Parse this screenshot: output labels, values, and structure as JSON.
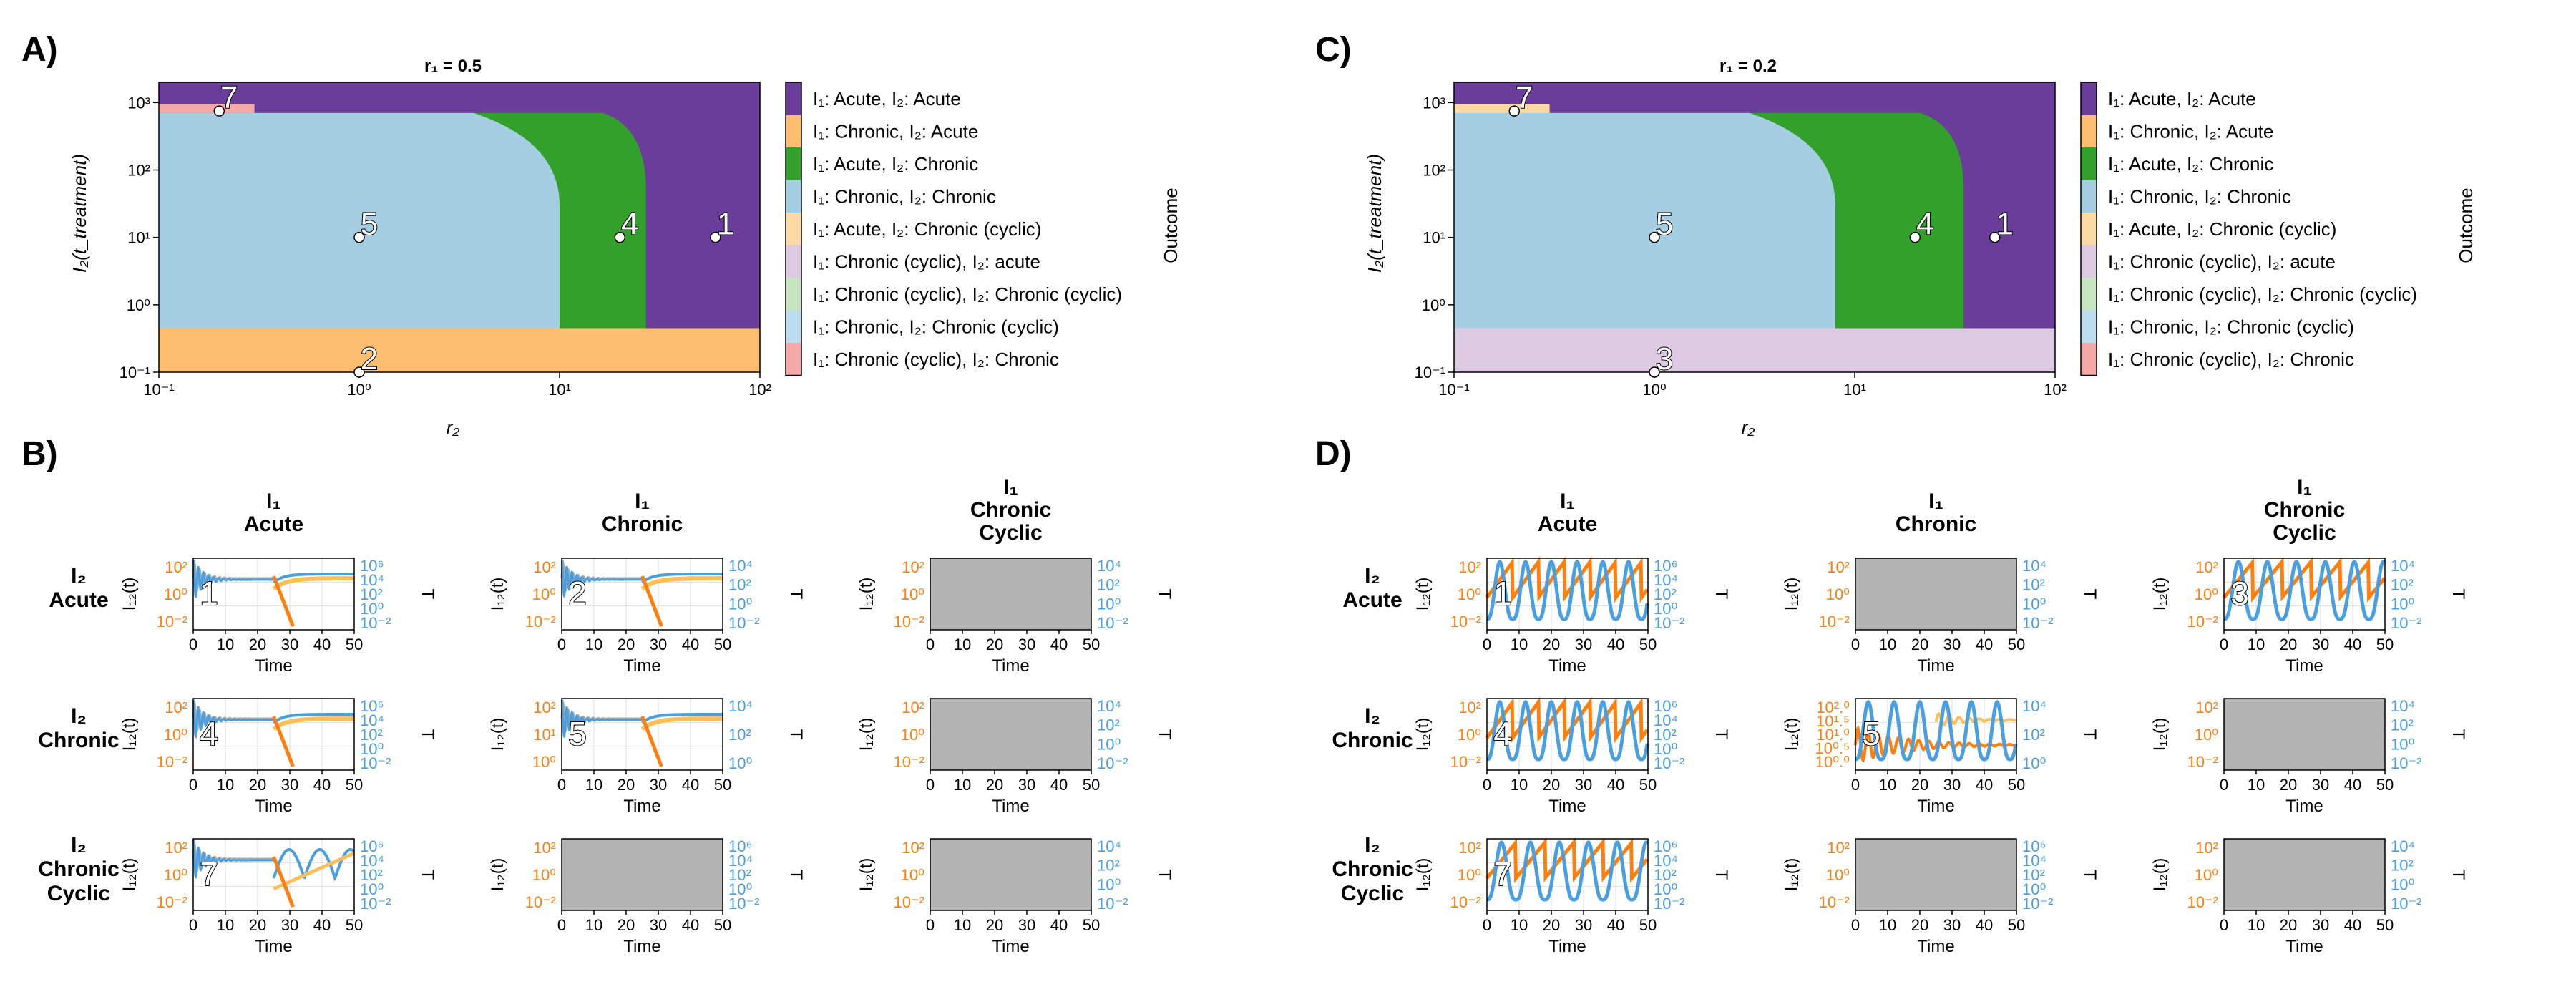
{
  "panel_letters": {
    "A": "A)",
    "B": "B)",
    "C": "C)",
    "D": "D)"
  },
  "row_headers": [
    [
      "I₂",
      "Acute"
    ],
    [
      "I₂",
      "Chronic"
    ],
    [
      "I₂",
      "Chronic",
      "Cyclic"
    ]
  ],
  "col_headers": [
    [
      "I₁",
      "Acute"
    ],
    [
      "I₁",
      "Chronic"
    ],
    [
      "I₁",
      "Chronic",
      "Cyclic"
    ]
  ],
  "legend_title": "Outcome",
  "legend": [
    {
      "label": "I₁: Acute, I₂: Acute",
      "color": "#6a3d9a"
    },
    {
      "label": "I₁: Chronic, I₂: Acute",
      "color": "#fdbf6f"
    },
    {
      "label": "I₁: Acute, I₂: Chronic",
      "color": "#33a02c"
    },
    {
      "label": "I₁: Chronic, I₂: Chronic",
      "color": "#a6cee3"
    },
    {
      "label": "I₁: Acute, I₂: Chronic (cyclic)",
      "color": "#fdd9a3"
    },
    {
      "label": "I₁: Chronic (cyclic), I₂: acute",
      "color": "#dcc9e2"
    },
    {
      "label": "I₁: Chronic (cyclic), I₂: Chronic (cyclic)",
      "color": "#c7e5c0"
    },
    {
      "label": "I₁: Chronic, I₂: Chronic (cyclic)",
      "color": "#bcdcef"
    },
    {
      "label": "I₁: Chronic (cyclic), I₂: Chronic",
      "color": "#f4a9a8"
    }
  ],
  "mini_axes": {
    "ylabel": "I₁₂(t)",
    "y2label": "T",
    "xlabel": "Time",
    "xticks": [
      "0",
      "10",
      "20",
      "30",
      "40",
      "50"
    ],
    "colors": {
      "orange": "#ff7f0e",
      "light_orange": "#fdbf5a",
      "blue": "#4a9fe0",
      "gray": "#a9a9a9"
    }
  },
  "chart_data": [
    {
      "type": "heatmap",
      "title": "r₁ = 0.5",
      "xlabel": "r₂",
      "ylabel": "I₂(t_treatment)",
      "xscale": "log",
      "yscale": "log",
      "xlim": [
        0.1,
        100
      ],
      "ylim": [
        0.1,
        2000
      ],
      "xticks": [
        "10⁻¹",
        "10⁰",
        "10¹",
        "10²"
      ],
      "yticks": [
        "10⁻¹",
        "10⁰",
        "10¹",
        "10²",
        "10³"
      ],
      "regions": [
        {
          "outcome": "I₁: Acute, I₂: Acute",
          "description": "top band and right side"
        },
        {
          "outcome": "I₁: Chronic, I₂: Acute",
          "y_range": [
            0.1,
            0.45
          ]
        },
        {
          "outcome": "I₁: Chronic, I₂: Chronic",
          "x_range": [
            0.1,
            10
          ],
          "y_range": [
            0.45,
            700
          ]
        },
        {
          "outcome": "I₁: Acute, I₂: Chronic",
          "x_range": [
            10,
            27
          ],
          "y_range": [
            0.45,
            700
          ]
        }
      ],
      "points": [
        {
          "label": "7",
          "x": 0.2,
          "y": 750
        },
        {
          "label": "5",
          "x": 1,
          "y": 10
        },
        {
          "label": "4",
          "x": 20,
          "y": 10
        },
        {
          "label": "1",
          "x": 60,
          "y": 10
        },
        {
          "label": "2",
          "x": 1,
          "y": 0.1
        }
      ]
    },
    {
      "type": "heatmap",
      "title": "r₁ = 0.2",
      "xlabel": "r₂",
      "ylabel": "I₂(t_treatment)",
      "xscale": "log",
      "yscale": "log",
      "xlim": [
        0.1,
        100
      ],
      "ylim": [
        0.1,
        2000
      ],
      "xticks": [
        "10⁻¹",
        "10⁰",
        "10¹",
        "10²"
      ],
      "yticks": [
        "10⁻¹",
        "10⁰",
        "10¹",
        "10²",
        "10³"
      ],
      "regions": [
        {
          "outcome": "I₁: Acute, I₂: Acute",
          "description": "top band and right side"
        },
        {
          "outcome": "I₁: Chronic (cyclic), I₂: acute",
          "y_range": [
            0.1,
            0.45
          ]
        },
        {
          "outcome": "I₁: Chronic, I₂: Chronic",
          "x_range": [
            0.1,
            8
          ],
          "y_range": [
            0.45,
            700
          ]
        },
        {
          "outcome": "I₁: Acute, I₂: Chronic",
          "x_range": [
            8,
            35
          ],
          "y_range": [
            0.3,
            700
          ]
        }
      ],
      "points": [
        {
          "label": "7",
          "x": 0.2,
          "y": 750
        },
        {
          "label": "5",
          "x": 1,
          "y": 10
        },
        {
          "label": "4",
          "x": 20,
          "y": 10
        },
        {
          "label": "1",
          "x": 50,
          "y": 10
        },
        {
          "label": "3",
          "x": 1,
          "y": 0.1
        }
      ]
    },
    {
      "type": "line",
      "panel": "B",
      "description": "time courses I₁₂(t) (left axis) and T (right axis) for each outcome",
      "xlim": [
        0,
        50
      ],
      "cells": [
        {
          "row": 0,
          "col": 0,
          "label": "1",
          "empty": false,
          "style": "damped",
          "ylim": [
            0.01,
            1000
          ],
          "yticks": [
            "10⁻²",
            "10⁰",
            "10²"
          ],
          "y2ticks": [
            "10⁻²",
            "10⁰",
            "10²",
            "10⁴",
            "10⁶"
          ]
        },
        {
          "row": 0,
          "col": 1,
          "label": "2",
          "empty": false,
          "style": "damped",
          "ylim": [
            0.01,
            1000
          ],
          "yticks": [
            "10⁻²",
            "10⁰",
            "10²"
          ],
          "y2ticks": [
            "10⁻²",
            "10⁰",
            "10²",
            "10⁴"
          ]
        },
        {
          "row": 0,
          "col": 2,
          "label": "",
          "empty": true,
          "yticks": [
            "10⁻²",
            "10⁰",
            "10²"
          ],
          "y2ticks": [
            "10⁻²",
            "10⁰",
            "10²",
            "10⁴"
          ]
        },
        {
          "row": 1,
          "col": 0,
          "label": "4",
          "empty": false,
          "style": "damped",
          "ylim": [
            0.01,
            1000
          ],
          "yticks": [
            "10⁻²",
            "10⁰",
            "10²"
          ],
          "y2ticks": [
            "10⁻²",
            "10⁰",
            "10²",
            "10⁴",
            "10⁶"
          ]
        },
        {
          "row": 1,
          "col": 1,
          "label": "5",
          "empty": false,
          "style": "damped",
          "ylim": [
            1,
            1000
          ],
          "yticks": [
            "10⁰",
            "10¹",
            "10²"
          ],
          "y2ticks": [
            "10⁰",
            "10²",
            "10⁴"
          ]
        },
        {
          "row": 1,
          "col": 2,
          "label": "",
          "empty": true,
          "yticks": [
            "10⁻²",
            "10⁰",
            "10²"
          ],
          "y2ticks": [
            "10⁻²",
            "10⁰",
            "10²",
            "10⁴"
          ]
        },
        {
          "row": 2,
          "col": 0,
          "label": "7",
          "empty": false,
          "style": "mixed",
          "ylim": [
            0.01,
            1000
          ],
          "yticks": [
            "10⁻²",
            "10⁰",
            "10²"
          ],
          "y2ticks": [
            "10⁻²",
            "10⁰",
            "10²",
            "10⁴",
            "10⁶"
          ]
        },
        {
          "row": 2,
          "col": 1,
          "label": "",
          "empty": true,
          "yticks": [
            "10⁻²",
            "10⁰",
            "10²"
          ],
          "y2ticks": [
            "10⁻²",
            "10⁰",
            "10²",
            "10⁴",
            "10⁶"
          ]
        },
        {
          "row": 2,
          "col": 2,
          "label": "",
          "empty": true,
          "yticks": [
            "10⁻²",
            "10⁰",
            "10²"
          ],
          "y2ticks": [
            "10⁻²",
            "10⁰",
            "10²",
            "10⁴"
          ]
        }
      ]
    },
    {
      "type": "line",
      "panel": "D",
      "description": "time courses I₁₂(t) (left axis) and T (right axis) for each outcome",
      "xlim": [
        0,
        50
      ],
      "cells": [
        {
          "row": 0,
          "col": 0,
          "label": "1",
          "empty": false,
          "style": "cyclic",
          "ylim": [
            0.01,
            1000
          ],
          "yticks": [
            "10⁻²",
            "10⁰",
            "10²"
          ],
          "y2ticks": [
            "10⁻²",
            "10⁰",
            "10²",
            "10⁴",
            "10⁶"
          ]
        },
        {
          "row": 0,
          "col": 1,
          "label": "",
          "empty": true,
          "yticks": [
            "10⁻²",
            "10⁰",
            "10²"
          ],
          "y2ticks": [
            "10⁻²",
            "10⁰",
            "10²",
            "10⁴"
          ]
        },
        {
          "row": 0,
          "col": 2,
          "label": "3",
          "empty": false,
          "style": "cyclic-long",
          "ylim": [
            0.01,
            1000
          ],
          "yticks": [
            "10⁻²",
            "10⁰",
            "10²"
          ],
          "y2ticks": [
            "10⁻²",
            "10⁰",
            "10²",
            "10⁴"
          ]
        },
        {
          "row": 1,
          "col": 0,
          "label": "4",
          "empty": false,
          "style": "cyclic",
          "ylim": [
            0.01,
            1000
          ],
          "yticks": [
            "10⁻²",
            "10⁰",
            "10²"
          ],
          "y2ticks": [
            "10⁻²",
            "10⁰",
            "10²",
            "10⁴",
            "10⁶"
          ]
        },
        {
          "row": 1,
          "col": 1,
          "label": "5",
          "empty": false,
          "style": "cyclic-damped",
          "ylim": [
            1,
            100
          ],
          "yticks": [
            "10⁰.⁰",
            "10⁰.⁵",
            "10¹.⁰",
            "10¹.⁵",
            "10².⁰"
          ],
          "y2ticks": [
            "10⁰",
            "10²",
            "10⁴"
          ]
        },
        {
          "row": 1,
          "col": 2,
          "label": "",
          "empty": true,
          "yticks": [
            "10⁻²",
            "10⁰",
            "10²"
          ],
          "y2ticks": [
            "10⁻²",
            "10⁰",
            "10²",
            "10⁴"
          ]
        },
        {
          "row": 2,
          "col": 0,
          "label": "7",
          "empty": false,
          "style": "cyclic-long",
          "ylim": [
            0.01,
            1000
          ],
          "yticks": [
            "10⁻²",
            "10⁰",
            "10²"
          ],
          "y2ticks": [
            "10⁻²",
            "10⁰",
            "10²",
            "10⁴",
            "10⁶"
          ]
        },
        {
          "row": 2,
          "col": 1,
          "label": "",
          "empty": true,
          "yticks": [
            "10⁻²",
            "10⁰",
            "10²"
          ],
          "y2ticks": [
            "10⁻²",
            "10⁰",
            "10²",
            "10⁴",
            "10⁶"
          ]
        },
        {
          "row": 2,
          "col": 2,
          "label": "",
          "empty": true,
          "yticks": [
            "10⁻²",
            "10⁰",
            "10²"
          ],
          "y2ticks": [
            "10⁻²",
            "10⁰",
            "10²",
            "10⁴"
          ]
        }
      ]
    }
  ]
}
